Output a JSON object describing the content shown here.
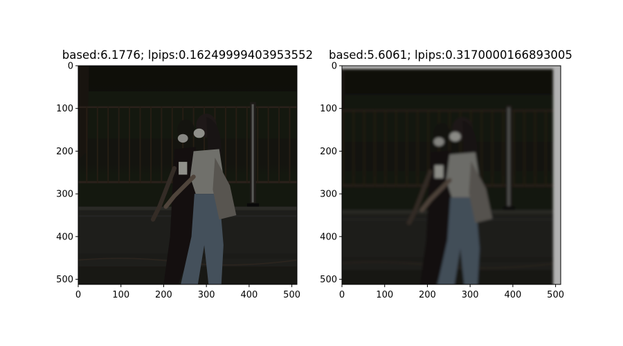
{
  "chart_data": [
    {
      "type": "image",
      "title": "based:6.1776; lpips:0.16249999403953552",
      "xlim": [
        0,
        512
      ],
      "ylim": [
        512,
        0
      ],
      "xticks": [
        0,
        100,
        200,
        300,
        400,
        500
      ],
      "yticks": [
        0,
        100,
        200,
        300,
        400,
        500
      ],
      "content": "night street photo: two masked people walking past a fence (sharp)"
    },
    {
      "type": "image",
      "title": "based:5.6061; lpips:0.3170000166893005",
      "xlim": [
        0,
        512
      ],
      "ylim": [
        512,
        0
      ],
      "xticks": [
        0,
        100,
        200,
        300,
        400,
        500
      ],
      "yticks": [
        0,
        100,
        200,
        300,
        400,
        500
      ],
      "content": "same scene reconstructed with heavy motion blur"
    }
  ],
  "colors": {
    "photo_background": "#1a1a14",
    "fence": "#2d2824",
    "wall": "#2a2a27",
    "jeans": "#5f6f7f",
    "shirt": "#9b9b95"
  }
}
